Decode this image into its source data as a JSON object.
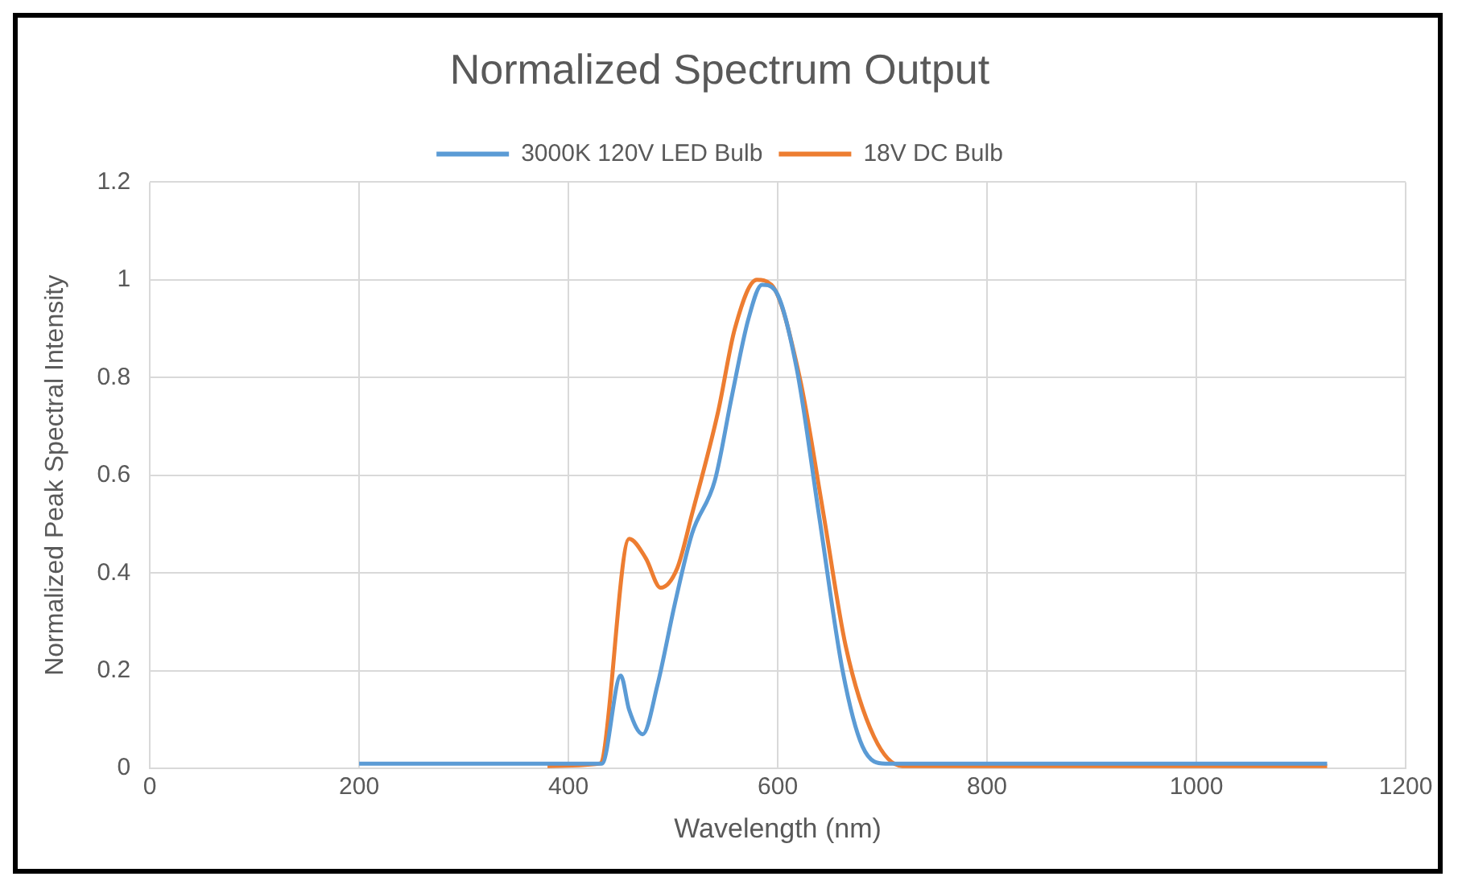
{
  "chart_data": {
    "type": "line",
    "title": "Normalized Spectrum Output",
    "xlabel": "Wavelength (nm)",
    "ylabel": "Normalized Peak Spectral Intensity",
    "xlim": [
      0,
      1200
    ],
    "xticks": [
      0,
      200,
      400,
      600,
      800,
      1000,
      1200
    ],
    "ylim": [
      0,
      1.2
    ],
    "yticks": [
      0,
      0.2,
      0.4,
      0.6,
      0.8,
      1,
      1.2
    ],
    "grid": true,
    "legend": "top",
    "marker": "none",
    "line_style": "solid",
    "series": [
      {
        "name": "3000K 120V LED Bulb",
        "color": "#5b9bd5",
        "x": [
          200,
          300,
          400,
          432,
          450,
          458,
          471,
          485,
          502,
          518,
          540,
          556,
          572,
          585,
          597,
          618,
          640,
          662,
          681,
          703,
          750,
          900,
          1125
        ],
        "values": [
          0.01,
          0.01,
          0.01,
          0.01,
          0.19,
          0.12,
          0.07,
          0.17,
          0.34,
          0.48,
          0.59,
          0.76,
          0.92,
          0.99,
          0.98,
          0.82,
          0.51,
          0.2,
          0.045,
          0.01,
          0.01,
          0.01,
          0.01
        ]
      },
      {
        "name": "18V DC Bulb",
        "color": "#ed7d31",
        "x": [
          380,
          430,
          458,
          474,
          488,
          504,
          518,
          543,
          559,
          580,
          594,
          621,
          643,
          665,
          692,
          719,
          800,
          1000,
          1125
        ],
        "values": [
          0.005,
          0.01,
          0.47,
          0.43,
          0.37,
          0.41,
          0.52,
          0.73,
          0.9,
          1.0,
          0.99,
          0.8,
          0.53,
          0.25,
          0.065,
          0.005,
          0.005,
          0.005,
          0.005
        ]
      }
    ]
  }
}
